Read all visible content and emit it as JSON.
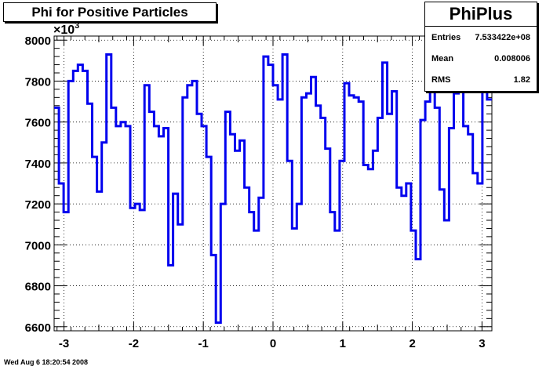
{
  "title": "Phi for Positive Particles",
  "stats": {
    "name": "PhiPlus",
    "rows": [
      {
        "key": "Entries",
        "value": "7.533422e+08"
      },
      {
        "key": "Mean",
        "value": "0.008006"
      },
      {
        "key": "RMS",
        "value": "1.82"
      }
    ]
  },
  "timestamp": "Wed Aug  6 18:20:54 2008",
  "y_exponent": "×10",
  "y_exponent_power": "3",
  "colors": {
    "line": "#0000ee",
    "grid": "#000000"
  },
  "chart_data": {
    "type": "line",
    "style": "step histogram",
    "xlim": [
      -3.1416,
      3.1416
    ],
    "ylim": [
      6580,
      8020
    ],
    "x_ticks": [
      "-3",
      "-2",
      "-1",
      "0",
      "1",
      "2",
      "3"
    ],
    "y_ticks": [
      "6600",
      "6800",
      "7000",
      "7200",
      "7400",
      "7600",
      "7800",
      "8000"
    ],
    "grid": true,
    "bin_values": [
      7670,
      7300,
      7160,
      7800,
      7850,
      7880,
      7850,
      7690,
      7430,
      7260,
      7500,
      7930,
      7670,
      7580,
      7600,
      7580,
      7180,
      7200,
      7170,
      7780,
      7650,
      7580,
      7530,
      7570,
      6900,
      7250,
      7100,
      7720,
      7780,
      7800,
      7640,
      7580,
      7430,
      6950,
      6620,
      7200,
      7650,
      7540,
      7460,
      7510,
      7280,
      7160,
      7070,
      7230,
      7920,
      7880,
      7780,
      7710,
      7930,
      7410,
      7080,
      7200,
      7720,
      7740,
      7820,
      7680,
      7620,
      7470,
      7160,
      7070,
      7410,
      7790,
      7730,
      7720,
      7700,
      7390,
      7370,
      7460,
      7620,
      7890,
      7640,
      7750,
      7280,
      7240,
      7300,
      7070,
      6930,
      7610,
      7700,
      7760,
      7670,
      7270,
      7120,
      7570,
      7740,
      7840,
      7580,
      7540,
      7350,
      7300,
      7750,
      7710
    ]
  }
}
